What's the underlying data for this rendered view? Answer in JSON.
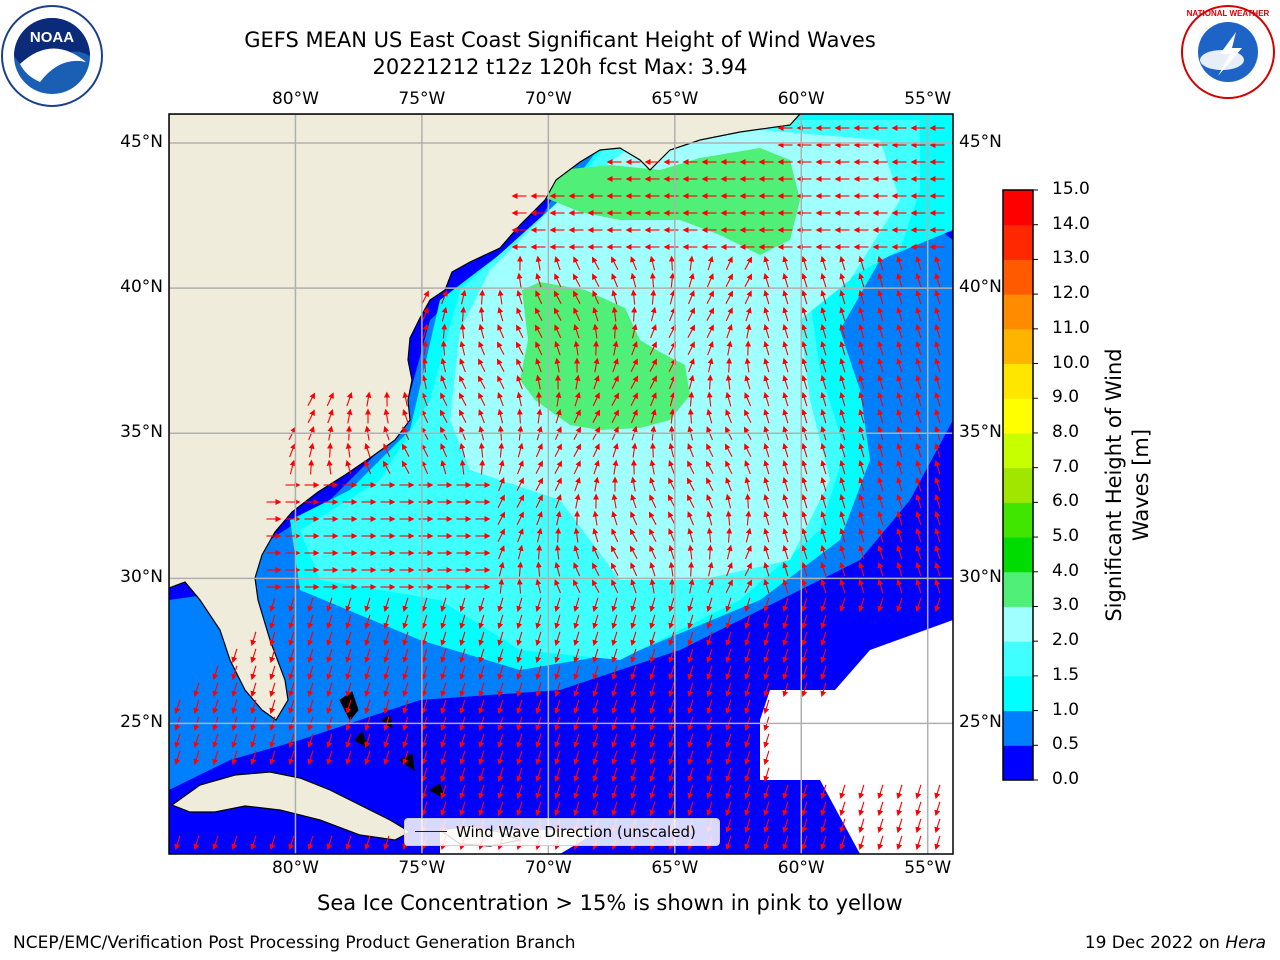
{
  "title": {
    "line1": "GEFS MEAN US East Coast Significant Height of Wind Waves",
    "line2": "20221212 t12z 120h fcst   Max: 3.94"
  },
  "map": {
    "extent_lon": [
      -85,
      -54
    ],
    "extent_lat": [
      20.5,
      46
    ],
    "lon_labels": [
      {
        "lon": -80,
        "label": "80°W"
      },
      {
        "lon": -75,
        "label": "75°W"
      },
      {
        "lon": -70,
        "label": "70°W"
      },
      {
        "lon": -65,
        "label": "65°W"
      },
      {
        "lon": -60,
        "label": "60°W"
      },
      {
        "lon": -55,
        "label": "55°W"
      }
    ],
    "lat_labels": [
      {
        "lat": 45,
        "label": "45°N"
      },
      {
        "lat": 40,
        "label": "40°N"
      },
      {
        "lat": 35,
        "label": "35°N"
      },
      {
        "lat": 30,
        "label": "30°N"
      },
      {
        "lat": 25,
        "label": "25°N"
      }
    ],
    "legend_label": "Wind Wave Direction (unscaled)",
    "colors": {
      "land": "#efecdc",
      "no_data": "#ffffff",
      "arrow": "#ff0000",
      "grid": "#b0b0b0"
    }
  },
  "colorbar": {
    "label": "Significant Height of Wind Waves [m]",
    "ticks": [
      "0.0",
      "0.5",
      "1.0",
      "1.5",
      "2.0",
      "3.0",
      "4.0",
      "5.0",
      "6.0",
      "7.0",
      "8.0",
      "9.0",
      "10.0",
      "11.0",
      "12.0",
      "13.0",
      "14.0",
      "15.0"
    ],
    "colors": [
      "#0000ff",
      "#0080ff",
      "#00ffff",
      "#40ffff",
      "#a0ffff",
      "#50f078",
      "#00dc00",
      "#40e600",
      "#a0e600",
      "#c8ff00",
      "#ffff00",
      "#ffe600",
      "#ffb400",
      "#ff8c00",
      "#ff5a00",
      "#ff2800",
      "#ff0000"
    ]
  },
  "note": "Sea Ice Concentration > 15% is shown in pink to yellow",
  "footer": {
    "left": "NCEP/EMC/Verification Post Processing Product Generation Branch",
    "right_prefix": "19 Dec 2022 on ",
    "right_host": "Hera"
  },
  "logos": {
    "left": "noaa-logo",
    "right": "nws-logo",
    "left_text": "NOAA",
    "right_text": "NATIONAL WEATHER SERVICE"
  }
}
